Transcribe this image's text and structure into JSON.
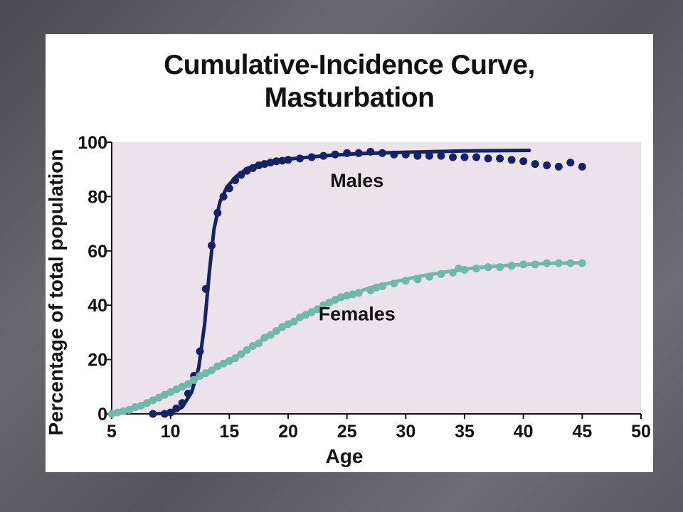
{
  "slide": {
    "background": "#5c5b62"
  },
  "chart_data": {
    "type": "line",
    "title_lines": [
      "Cumulative-Incidence Curve,",
      "Masturbation"
    ],
    "xlabel": "Age",
    "ylabel": "Percentage of total population",
    "xlim": [
      5,
      50
    ],
    "ylim": [
      0,
      100
    ],
    "x_ticks": [
      5,
      10,
      15,
      20,
      25,
      30,
      35,
      40,
      45,
      50
    ],
    "y_ticks": [
      0,
      20,
      40,
      60,
      80,
      100
    ],
    "grid": false,
    "plot_background": "#ece2ea",
    "series": [
      {
        "name": "Males",
        "color": "#152266",
        "points": [
          [
            8.5,
            0
          ],
          [
            9.5,
            0
          ],
          [
            10,
            0.5
          ],
          [
            10.5,
            2
          ],
          [
            11,
            4
          ],
          [
            11.5,
            7.5
          ],
          [
            12,
            14
          ],
          [
            12.5,
            23
          ],
          [
            13,
            46
          ],
          [
            13.5,
            62
          ],
          [
            14,
            74
          ],
          [
            14.5,
            80
          ],
          [
            15,
            83
          ],
          [
            15.5,
            86
          ],
          [
            16,
            88
          ],
          [
            16.5,
            89.5
          ],
          [
            17,
            90.5
          ],
          [
            17.5,
            91.5
          ],
          [
            18,
            92
          ],
          [
            18.5,
            92.5
          ],
          [
            19,
            93
          ],
          [
            19.5,
            93.2
          ],
          [
            20,
            93.5
          ],
          [
            21,
            94
          ],
          [
            22,
            94.5
          ],
          [
            23,
            95
          ],
          [
            24,
            95.5
          ],
          [
            25,
            96
          ],
          [
            26,
            96
          ],
          [
            27,
            96.5
          ],
          [
            28,
            96
          ],
          [
            29,
            95.5
          ],
          [
            30,
            95.5
          ],
          [
            31,
            95
          ],
          [
            32,
            95
          ],
          [
            33,
            95
          ],
          [
            34,
            94.5
          ],
          [
            35,
            94.5
          ],
          [
            36,
            94.5
          ],
          [
            37,
            94
          ],
          [
            38,
            94
          ],
          [
            39,
            93.5
          ],
          [
            40,
            93
          ],
          [
            41,
            92
          ],
          [
            42,
            91.5
          ],
          [
            43,
            91
          ],
          [
            44,
            92.5
          ],
          [
            45,
            91
          ]
        ],
        "fit": [
          [
            8.5,
            0
          ],
          [
            10,
            0.3
          ],
          [
            11,
            2.5
          ],
          [
            11.8,
            8
          ],
          [
            12.4,
            17
          ],
          [
            12.9,
            33
          ],
          [
            13.3,
            52
          ],
          [
            13.7,
            68
          ],
          [
            14.2,
            78
          ],
          [
            14.8,
            83.5
          ],
          [
            15.6,
            87.5
          ],
          [
            16.6,
            90.5
          ],
          [
            18,
            92.5
          ],
          [
            20,
            93.8
          ],
          [
            23,
            95
          ],
          [
            26,
            95.8
          ],
          [
            30,
            96.3
          ],
          [
            35,
            96.8
          ],
          [
            40.5,
            97
          ]
        ],
        "label_at": [
          19.5,
          84
        ]
      },
      {
        "name": "Females",
        "color": "#6fb8aa",
        "points": [
          [
            5,
            0
          ],
          [
            5.5,
            0.5
          ],
          [
            6,
            1
          ],
          [
            6.5,
            1.5
          ],
          [
            7,
            2.5
          ],
          [
            7.5,
            3
          ],
          [
            8,
            4
          ],
          [
            8.5,
            5
          ],
          [
            9,
            6
          ],
          [
            9.5,
            7
          ],
          [
            10,
            8
          ],
          [
            10.5,
            9
          ],
          [
            11,
            10
          ],
          [
            11.5,
            11
          ],
          [
            12,
            12.5
          ],
          [
            12.5,
            14
          ],
          [
            13,
            15
          ],
          [
            13.5,
            16
          ],
          [
            14,
            17.5
          ],
          [
            14.5,
            18.5
          ],
          [
            15,
            19.5
          ],
          [
            15.5,
            20.5
          ],
          [
            16,
            22
          ],
          [
            16.5,
            23.5
          ],
          [
            17,
            25
          ],
          [
            17.5,
            26
          ],
          [
            18,
            28
          ],
          [
            18.5,
            29
          ],
          [
            19,
            30.5
          ],
          [
            19.5,
            32
          ],
          [
            20,
            33
          ],
          [
            20.5,
            34
          ],
          [
            21,
            35.5
          ],
          [
            21.5,
            36.5
          ],
          [
            22,
            37.5
          ],
          [
            22.5,
            38.5
          ],
          [
            23,
            40
          ],
          [
            23.5,
            41
          ],
          [
            24,
            42
          ],
          [
            24.5,
            43
          ],
          [
            25,
            43.5
          ],
          [
            25.5,
            44
          ],
          [
            26,
            44.5
          ],
          [
            27,
            45.5
          ],
          [
            27.5,
            46.5
          ],
          [
            28,
            47
          ],
          [
            29,
            48
          ],
          [
            30,
            49
          ],
          [
            31,
            49.5
          ],
          [
            32,
            50.5
          ],
          [
            33,
            51.5
          ],
          [
            34,
            52
          ],
          [
            34.5,
            53.5
          ],
          [
            35,
            53
          ],
          [
            36,
            53.5
          ],
          [
            37,
            54
          ],
          [
            38,
            54
          ],
          [
            39,
            54.5
          ],
          [
            40,
            55
          ],
          [
            41,
            55
          ],
          [
            42,
            55.5
          ],
          [
            43,
            55.5
          ],
          [
            44,
            55.5
          ],
          [
            45,
            55.5
          ]
        ],
        "fit": [
          [
            5,
            0
          ],
          [
            7,
            2.5
          ],
          [
            9,
            6
          ],
          [
            11,
            10
          ],
          [
            13,
            15
          ],
          [
            15,
            19.5
          ],
          [
            17,
            25
          ],
          [
            19,
            30.5
          ],
          [
            21,
            35.5
          ],
          [
            23,
            40
          ],
          [
            25,
            43.5
          ],
          [
            27,
            46.5
          ],
          [
            29,
            48.5
          ],
          [
            31,
            50.5
          ],
          [
            33,
            52
          ],
          [
            35,
            53.3
          ],
          [
            37,
            54.2
          ],
          [
            39,
            54.8
          ],
          [
            41,
            55.2
          ],
          [
            43,
            55.5
          ],
          [
            45,
            55.6
          ]
        ],
        "label_at": [
          19.5,
          35
        ]
      }
    ]
  }
}
